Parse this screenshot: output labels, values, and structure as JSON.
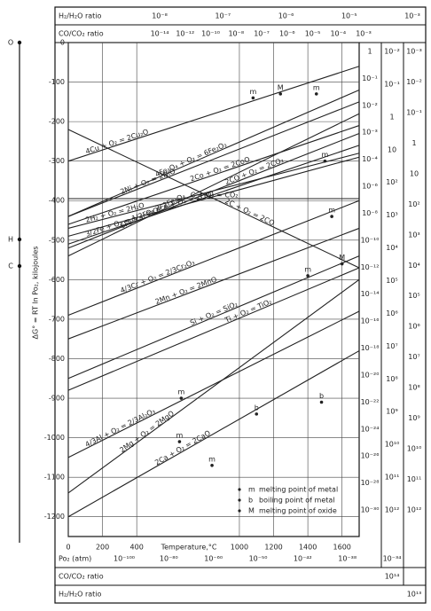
{
  "chart_data": {
    "type": "line",
    "y_label": "ΔG° = RT ln Po₂, kilojoules",
    "x_label": "Temperature,°C",
    "x": [
      0,
      1700
    ],
    "xlim": [
      0,
      1700
    ],
    "ylim": [
      -1250,
      0
    ],
    "xticks": [
      0,
      200,
      400,
      1000,
      1200,
      1400,
      1600
    ],
    "yticks": [
      0,
      -100,
      -200,
      -300,
      -400,
      -500,
      -600,
      -700,
      -800,
      -900,
      -1000,
      -1100,
      -1200
    ],
    "grid": true,
    "color": "#222222",
    "series": [
      {
        "name": "4Cu + O₂ = 2Cu₂O",
        "values": [
          -300,
          -60
        ]
      },
      {
        "name": "2Ni + O₂ = 2NiO",
        "values": [
          -440,
          -150
        ]
      },
      {
        "name": "4Fe₃O₄ + O₂ = 6Fe₂O₃",
        "values": [
          -440,
          -120
        ]
      },
      {
        "name": "2Co + O₂ = 2CoO",
        "values": [
          -460,
          -210
        ]
      },
      {
        "name": "2CO + O₂ = 2CO₂",
        "values": [
          -520,
          -230
        ]
      },
      {
        "name": "2H₂ + O₂ = 2H₂O",
        "values": [
          -470,
          -280
        ]
      },
      {
        "name": "6FeO + O₂ = 2Fe₃O₄",
        "values": [
          -540,
          -180
        ]
      },
      {
        "name": "2Fe + O₂ = 2FeO",
        "values": [
          -490,
          -290
        ]
      },
      {
        "name": "C + O₂ = CO₂",
        "values": [
          -395,
          -395
        ]
      },
      {
        "name": "2C + O₂ = 2CO",
        "values": [
          -220,
          -570
        ]
      },
      {
        "name": "3/2Fe + O₂ = 1/2Fe₃O₄",
        "values": [
          -510,
          -260
        ]
      },
      {
        "name": "4/3Cr + O₂ = 2/3Cr₂O₃",
        "values": [
          -690,
          -400
        ]
      },
      {
        "name": "2Mn + O₂ = 2MnO",
        "values": [
          -750,
          -470
        ]
      },
      {
        "name": "Si + O₂ = SiO₂",
        "values": [
          -850,
          -540
        ]
      },
      {
        "name": "Ti + O₂ = TiO₂",
        "values": [
          -880,
          -570
        ]
      },
      {
        "name": "4/3Al + O₂ = 2/3Al₂O₃",
        "values": [
          -1050,
          -680
        ]
      },
      {
        "name": "2Mg + O₂ = 2MgO",
        "values": [
          -1140,
          -600
        ]
      },
      {
        "name": "2Ca + O₂ = 2CaO",
        "values": [
          -1200,
          -780
        ]
      }
    ],
    "point_markers": [
      {
        "label": "M",
        "x": 1240,
        "y": -130
      },
      {
        "label": "m",
        "x": 1080,
        "y": -140
      },
      {
        "label": "m",
        "x": 1450,
        "y": -130
      },
      {
        "label": "m",
        "x": 1500,
        "y": -300
      },
      {
        "label": "m",
        "x": 1540,
        "y": -440
      },
      {
        "label": "M",
        "x": 1600,
        "y": -560
      },
      {
        "label": "m",
        "x": 1400,
        "y": -590
      },
      {
        "label": "m",
        "x": 660,
        "y": -900
      },
      {
        "label": "b",
        "x": 1100,
        "y": -940
      },
      {
        "label": "b",
        "x": 1480,
        "y": -910
      },
      {
        "label": "m",
        "x": 650,
        "y": -1010
      },
      {
        "label": "m",
        "x": 840,
        "y": -1070
      }
    ],
    "legend_items": [
      {
        "symbol": "m",
        "text": "melting point of metal"
      },
      {
        "symbol": "b",
        "text": "boiling point of metal"
      },
      {
        "symbol": "M",
        "text": "melting point of oxide"
      }
    ],
    "left_points": [
      "O",
      "H",
      "C"
    ],
    "top_scales": [
      {
        "title": "H₂/H₂O ratio",
        "labels": [
          "10⁻⁸",
          "10⁻⁷",
          "10⁻⁶",
          "10⁻⁵",
          "10⁻³"
        ]
      },
      {
        "title": "CO/CO₂ ratio",
        "labels": [
          "10⁻¹⁴",
          "10⁻¹²",
          "10⁻¹⁰",
          "10⁻⁸",
          "10⁻⁷",
          "10⁻⁶",
          "10⁻⁵",
          "10⁻⁴",
          "10⁻³"
        ]
      }
    ],
    "bottom_scales": [
      {
        "title": "Po₂ (atm)",
        "labels": [
          "10⁻¹⁰⁰",
          "10⁻⁸⁰",
          "10⁻⁶⁰",
          "10⁻⁵⁰",
          "10⁻⁴²",
          "10⁻³⁸",
          "10⁻³⁴"
        ]
      },
      {
        "title": "CO/CO₂ ratio",
        "labels": [
          "10¹⁴"
        ]
      },
      {
        "title": "H₂/H₂O ratio",
        "labels": [
          "10¹³"
        ]
      }
    ],
    "right_scales": [
      [
        "1",
        "10⁻¹",
        "10⁻²",
        "10⁻³",
        "10⁻⁴",
        "10⁻⁶",
        "10⁻⁸",
        "10⁻¹⁰",
        "10⁻¹²",
        "10⁻¹⁴",
        "10⁻¹⁶",
        "10⁻¹⁸",
        "10⁻²⁰",
        "10⁻²²",
        "10⁻²⁴",
        "10⁻²⁶",
        "10⁻²⁸",
        "10⁻³⁰"
      ],
      [
        "10⁻²",
        "10⁻¹",
        "1",
        "10",
        "10²",
        "10³",
        "10⁴",
        "10⁵",
        "10⁶",
        "10⁷",
        "10⁸",
        "10⁹",
        "10¹⁰",
        "10¹¹",
        "10¹²"
      ],
      [
        "10⁻³",
        "10⁻²",
        "10⁻¹",
        "1",
        "10",
        "10²",
        "10³",
        "10⁴",
        "10⁵",
        "10⁶",
        "10⁷",
        "10⁸",
        "10⁹",
        "10¹⁰",
        "10¹¹",
        "10¹²"
      ]
    ]
  }
}
